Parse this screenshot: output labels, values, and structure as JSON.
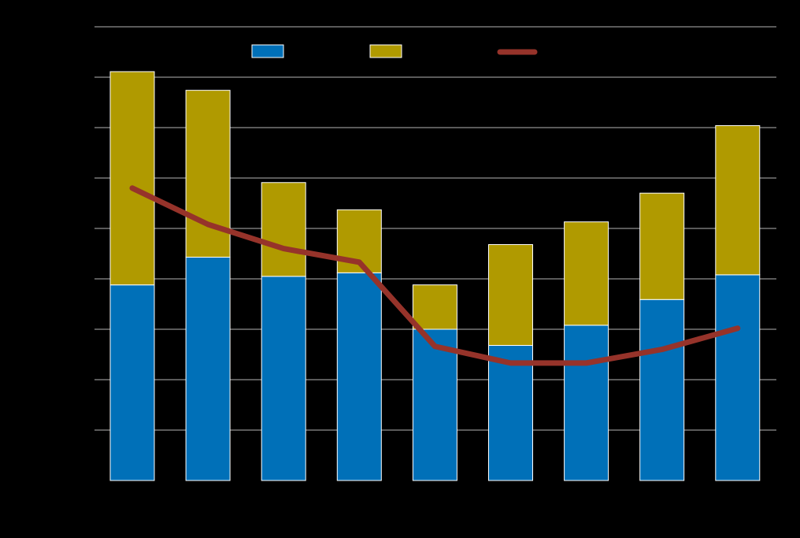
{
  "chart_data": {
    "type": "bar",
    "stacked": true,
    "categories": [
      "",
      "",
      "",
      "",
      "",
      "",
      "",
      "",
      ""
    ],
    "ylim": [
      0,
      9
    ],
    "grid": true,
    "legend_position": "top-center",
    "series": [
      {
        "type": "bar",
        "color": "#0070b8",
        "values": [
          3.88,
          4.43,
          4.05,
          4.12,
          3.0,
          2.68,
          3.08,
          3.59,
          4.08
        ]
      },
      {
        "type": "bar",
        "color": "#b09a00",
        "values": [
          4.23,
          3.31,
          1.86,
          1.25,
          0.88,
          2.0,
          2.05,
          2.11,
          2.96
        ]
      },
      {
        "type": "line",
        "color": "#96332a",
        "values": [
          5.8,
          5.08,
          4.6,
          4.33,
          2.66,
          2.33,
          2.33,
          2.6,
          3.02
        ]
      }
    ],
    "title": "",
    "xlabel": "",
    "ylabel": ""
  }
}
